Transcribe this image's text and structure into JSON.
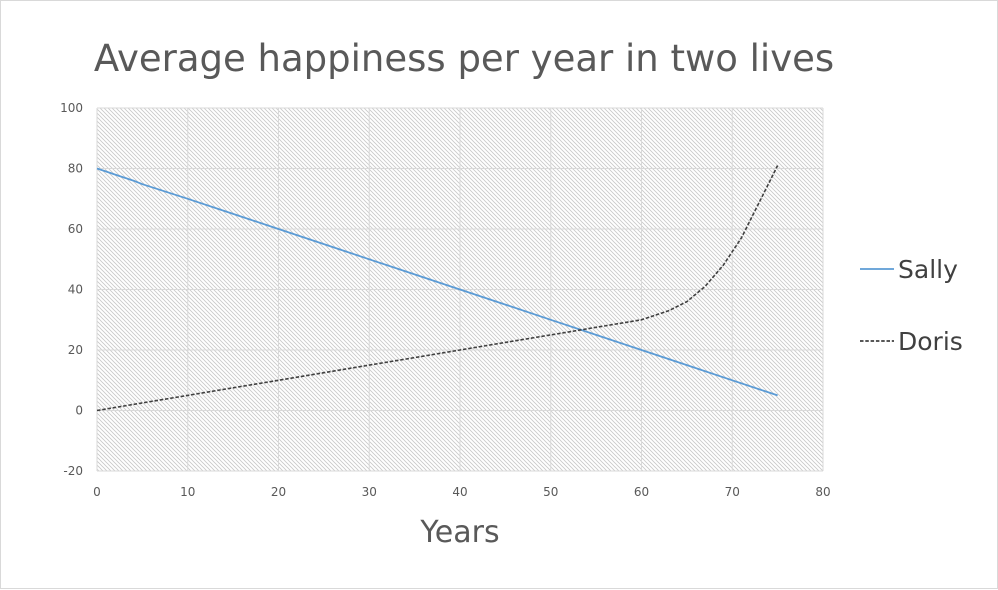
{
  "chart_data": {
    "type": "line",
    "title": "Average happiness per year in two lives",
    "xlabel": "Years",
    "ylabel": "",
    "xlim": [
      0,
      80
    ],
    "ylim": [
      -20,
      100
    ],
    "x_ticks": [
      "0",
      "10",
      "20",
      "30",
      "40",
      "50",
      "60",
      "70",
      "80"
    ],
    "y_ticks": [
      "-20",
      "0",
      "20",
      "40",
      "60",
      "80",
      "100"
    ],
    "grid": true,
    "legend_position": "right",
    "series": [
      {
        "name": "Sally",
        "color": "#5b9bd5",
        "style": "solid",
        "x": [
          0,
          1,
          2,
          3,
          4,
          5,
          10,
          15,
          20,
          25,
          30,
          35,
          39,
          40,
          45,
          50,
          55,
          60,
          65,
          70,
          74,
          75
        ],
        "y": [
          80,
          79,
          78,
          77,
          76,
          74.8,
          70,
          65,
          60,
          55,
          50,
          45,
          41,
          40,
          35,
          30,
          25,
          20,
          15,
          10,
          6,
          5
        ]
      },
      {
        "name": "Doris",
        "color": "#404040",
        "style": "dashed",
        "x": [
          0,
          5,
          10,
          15,
          20,
          25,
          30,
          35,
          40,
          45,
          50,
          52,
          55,
          58,
          60,
          63,
          65,
          67,
          69,
          71,
          72,
          73,
          74,
          75
        ],
        "y": [
          0,
          2.5,
          5,
          7.5,
          10,
          12.5,
          15,
          17.5,
          20,
          22.5,
          25,
          26,
          27.5,
          29,
          30,
          33,
          36,
          41,
          48,
          57,
          63,
          69,
          75,
          81
        ]
      }
    ]
  }
}
